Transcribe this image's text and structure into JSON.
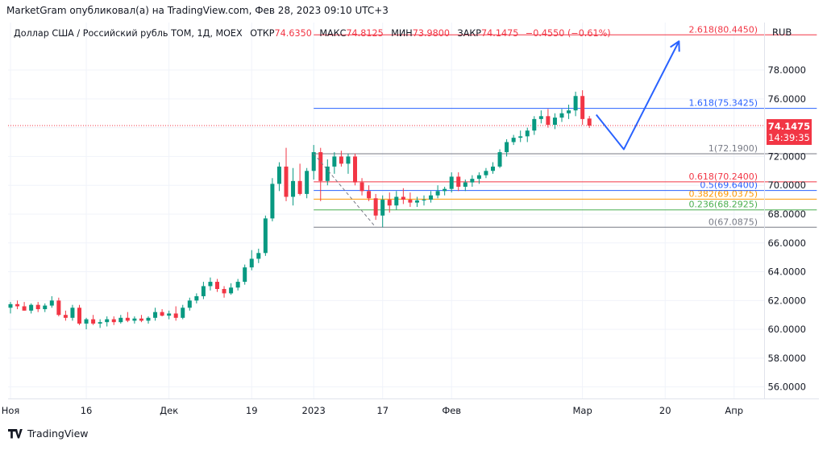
{
  "header": {
    "published": "MarketGram опубликовал(а) на TradingView.com, Фев 28, 2023 09:10 UTC+3"
  },
  "legend": {
    "symbol": "Доллар США / Российский рубль TOM, 1Д, MOEX",
    "open_label": "ОТКР",
    "open_value": "74.6350",
    "high_label": "МАКС",
    "high_value": "74.8125",
    "low_label": "МИН",
    "low_value": "73.9800",
    "close_label": "ЗАКР",
    "close_value": "74.1475",
    "change": "−0.4550 (−0.61%)"
  },
  "footer": {
    "brand": "TradingView"
  },
  "chart_data": {
    "type": "candlestick",
    "currency": "RUB",
    "ylim": [
      55.2,
      81.3
    ],
    "y_ticks": [
      "56.0000",
      "58.0000",
      "60.0000",
      "62.0000",
      "64.0000",
      "66.0000",
      "68.0000",
      "70.0000",
      "72.0000",
      "74.0000",
      "76.0000",
      "78.0000"
    ],
    "x_ticks": [
      {
        "label": "Ноя",
        "bar": 0
      },
      {
        "label": "16",
        "bar": 11
      },
      {
        "label": "Дек",
        "bar": 23
      },
      {
        "label": "19",
        "bar": 35
      },
      {
        "label": "2023",
        "bar": 44
      },
      {
        "label": "17",
        "bar": 54
      },
      {
        "label": "Фев",
        "bar": 64
      },
      {
        "label": "Мар",
        "bar": 83
      },
      {
        "label": "20",
        "bar": 95
      },
      {
        "label": "Апр",
        "bar": 105
      }
    ],
    "price_label": {
      "value": "74.1475",
      "countdown": "14:39:35"
    },
    "candles": [
      {
        "o": 61.5,
        "h": 61.9,
        "l": 61.1,
        "c": 61.75
      },
      {
        "o": 61.75,
        "h": 62.0,
        "l": 61.4,
        "c": 61.6
      },
      {
        "o": 61.6,
        "h": 61.9,
        "l": 61.3,
        "c": 61.3
      },
      {
        "o": 61.3,
        "h": 61.8,
        "l": 61.1,
        "c": 61.7
      },
      {
        "o": 61.7,
        "h": 61.9,
        "l": 61.2,
        "c": 61.4
      },
      {
        "o": 61.4,
        "h": 61.8,
        "l": 61.2,
        "c": 61.65
      },
      {
        "o": 61.65,
        "h": 62.3,
        "l": 61.5,
        "c": 62.0
      },
      {
        "o": 62.0,
        "h": 62.2,
        "l": 60.9,
        "c": 61.0
      },
      {
        "o": 61.0,
        "h": 61.3,
        "l": 60.6,
        "c": 60.8
      },
      {
        "o": 60.8,
        "h": 61.7,
        "l": 60.6,
        "c": 61.5
      },
      {
        "o": 61.5,
        "h": 61.7,
        "l": 60.3,
        "c": 60.4
      },
      {
        "o": 60.4,
        "h": 60.8,
        "l": 60.0,
        "c": 60.7
      },
      {
        "o": 60.7,
        "h": 61.0,
        "l": 60.3,
        "c": 60.4
      },
      {
        "o": 60.4,
        "h": 60.7,
        "l": 60.1,
        "c": 60.5
      },
      {
        "o": 60.5,
        "h": 60.9,
        "l": 60.2,
        "c": 60.7
      },
      {
        "o": 60.7,
        "h": 60.9,
        "l": 60.3,
        "c": 60.5
      },
      {
        "o": 60.5,
        "h": 61.0,
        "l": 60.4,
        "c": 60.8
      },
      {
        "o": 60.8,
        "h": 61.2,
        "l": 60.5,
        "c": 60.6
      },
      {
        "o": 60.6,
        "h": 60.9,
        "l": 60.4,
        "c": 60.75
      },
      {
        "o": 60.75,
        "h": 61.0,
        "l": 60.5,
        "c": 60.6
      },
      {
        "o": 60.6,
        "h": 60.9,
        "l": 60.4,
        "c": 60.8
      },
      {
        "o": 60.8,
        "h": 61.5,
        "l": 60.6,
        "c": 61.2
      },
      {
        "o": 61.2,
        "h": 61.4,
        "l": 60.9,
        "c": 60.95
      },
      {
        "o": 60.95,
        "h": 61.3,
        "l": 60.7,
        "c": 61.1
      },
      {
        "o": 61.1,
        "h": 61.6,
        "l": 60.6,
        "c": 60.8
      },
      {
        "o": 60.8,
        "h": 61.7,
        "l": 60.7,
        "c": 61.5
      },
      {
        "o": 61.5,
        "h": 62.2,
        "l": 61.3,
        "c": 62.0
      },
      {
        "o": 62.0,
        "h": 62.5,
        "l": 61.8,
        "c": 62.3
      },
      {
        "o": 62.3,
        "h": 63.3,
        "l": 62.1,
        "c": 63.0
      },
      {
        "o": 63.0,
        "h": 63.6,
        "l": 62.7,
        "c": 63.3
      },
      {
        "o": 63.3,
        "h": 63.5,
        "l": 62.6,
        "c": 62.8
      },
      {
        "o": 62.8,
        "h": 63.0,
        "l": 62.2,
        "c": 62.5
      },
      {
        "o": 62.5,
        "h": 63.2,
        "l": 62.4,
        "c": 62.9
      },
      {
        "o": 62.9,
        "h": 63.5,
        "l": 62.7,
        "c": 63.3
      },
      {
        "o": 63.3,
        "h": 64.5,
        "l": 63.1,
        "c": 64.3
      },
      {
        "o": 64.3,
        "h": 65.5,
        "l": 64.1,
        "c": 64.9
      },
      {
        "o": 64.9,
        "h": 65.6,
        "l": 64.6,
        "c": 65.3
      },
      {
        "o": 65.3,
        "h": 67.9,
        "l": 65.1,
        "c": 67.7
      },
      {
        "o": 67.7,
        "h": 70.5,
        "l": 67.5,
        "c": 70.1
      },
      {
        "o": 70.1,
        "h": 71.6,
        "l": 69.6,
        "c": 71.3
      },
      {
        "o": 71.3,
        "h": 72.6,
        "l": 68.9,
        "c": 69.2
      },
      {
        "o": 69.2,
        "h": 71.2,
        "l": 68.6,
        "c": 70.3
      },
      {
        "o": 70.3,
        "h": 71.5,
        "l": 69.3,
        "c": 69.4
      },
      {
        "o": 69.4,
        "h": 71.2,
        "l": 69.1,
        "c": 71.0
      },
      {
        "o": 71.0,
        "h": 72.8,
        "l": 70.4,
        "c": 72.3
      },
      {
        "o": 72.3,
        "h": 72.6,
        "l": 68.9,
        "c": 70.3
      },
      {
        "o": 70.3,
        "h": 71.8,
        "l": 70.0,
        "c": 71.3
      },
      {
        "o": 71.3,
        "h": 72.3,
        "l": 70.8,
        "c": 72.0
      },
      {
        "o": 72.0,
        "h": 72.4,
        "l": 71.3,
        "c": 71.5
      },
      {
        "o": 71.5,
        "h": 72.2,
        "l": 70.8,
        "c": 72.0
      },
      {
        "o": 72.0,
        "h": 72.2,
        "l": 70.0,
        "c": 70.2
      },
      {
        "o": 70.2,
        "h": 70.5,
        "l": 69.3,
        "c": 69.6
      },
      {
        "o": 69.6,
        "h": 70.0,
        "l": 68.9,
        "c": 69.1
      },
      {
        "o": 69.1,
        "h": 69.4,
        "l": 67.6,
        "c": 67.9
      },
      {
        "o": 67.9,
        "h": 69.3,
        "l": 67.09,
        "c": 69.0
      },
      {
        "o": 69.0,
        "h": 69.5,
        "l": 68.1,
        "c": 68.6
      },
      {
        "o": 68.6,
        "h": 69.6,
        "l": 68.3,
        "c": 69.2
      },
      {
        "o": 69.2,
        "h": 69.8,
        "l": 68.7,
        "c": 69.0
      },
      {
        "o": 69.0,
        "h": 69.5,
        "l": 68.5,
        "c": 68.8
      },
      {
        "o": 68.8,
        "h": 69.2,
        "l": 68.5,
        "c": 68.95
      },
      {
        "o": 68.95,
        "h": 69.3,
        "l": 68.6,
        "c": 69.0
      },
      {
        "o": 69.0,
        "h": 69.6,
        "l": 68.8,
        "c": 69.3
      },
      {
        "o": 69.3,
        "h": 70.0,
        "l": 69.1,
        "c": 69.6
      },
      {
        "o": 69.6,
        "h": 69.9,
        "l": 69.3,
        "c": 69.75
      },
      {
        "o": 69.75,
        "h": 70.9,
        "l": 69.5,
        "c": 70.6
      },
      {
        "o": 70.6,
        "h": 70.9,
        "l": 69.6,
        "c": 69.9
      },
      {
        "o": 69.9,
        "h": 70.4,
        "l": 69.6,
        "c": 70.2
      },
      {
        "o": 70.2,
        "h": 70.7,
        "l": 69.9,
        "c": 70.45
      },
      {
        "o": 70.45,
        "h": 70.9,
        "l": 70.1,
        "c": 70.7
      },
      {
        "o": 70.7,
        "h": 71.2,
        "l": 70.5,
        "c": 71.0
      },
      {
        "o": 71.0,
        "h": 71.6,
        "l": 70.8,
        "c": 71.3
      },
      {
        "o": 71.3,
        "h": 72.5,
        "l": 71.2,
        "c": 72.3
      },
      {
        "o": 72.3,
        "h": 73.2,
        "l": 72.0,
        "c": 73.0
      },
      {
        "o": 73.0,
        "h": 73.5,
        "l": 72.8,
        "c": 73.3
      },
      {
        "o": 73.3,
        "h": 73.8,
        "l": 73.0,
        "c": 73.4
      },
      {
        "o": 73.4,
        "h": 74.0,
        "l": 73.0,
        "c": 73.8
      },
      {
        "o": 73.8,
        "h": 74.8,
        "l": 73.5,
        "c": 74.6
      },
      {
        "o": 74.6,
        "h": 75.2,
        "l": 74.3,
        "c": 74.8
      },
      {
        "o": 74.8,
        "h": 75.3,
        "l": 74.0,
        "c": 74.2
      },
      {
        "o": 74.2,
        "h": 75.0,
        "l": 73.9,
        "c": 74.7
      },
      {
        "o": 74.7,
        "h": 75.3,
        "l": 74.4,
        "c": 75.0
      },
      {
        "o": 75.0,
        "h": 75.6,
        "l": 74.6,
        "c": 75.2
      },
      {
        "o": 75.2,
        "h": 76.5,
        "l": 74.8,
        "c": 76.2
      },
      {
        "o": 76.2,
        "h": 76.6,
        "l": 74.2,
        "c": 74.6
      },
      {
        "o": 74.635,
        "h": 74.8125,
        "l": 73.98,
        "c": 74.1475
      }
    ],
    "fib": {
      "start_bar": 44,
      "end_bar": 117,
      "levels": [
        {
          "label": "0(67.0875)",
          "value": 67.0875,
          "color": "#787b86"
        },
        {
          "label": "0.236(68.2925)",
          "value": 68.2925,
          "color": "#4caf50"
        },
        {
          "label": "0.382(69.0375)",
          "value": 69.0375,
          "color": "#ff9800"
        },
        {
          "label": "0.5(69.6400)",
          "value": 69.64,
          "color": "#2962ff"
        },
        {
          "label": "0.618(70.2400)",
          "value": 70.24,
          "color": "#f23645"
        },
        {
          "label": "1(72.1900)",
          "value": 72.19,
          "color": "#787b86"
        },
        {
          "label": "1.618(75.3425)",
          "value": 75.3425,
          "color": "#2962ff"
        },
        {
          "label": "2.618(80.4450)",
          "value": 80.445,
          "color": "#f23645"
        }
      ]
    },
    "trend_dashed": [
      {
        "bar": 44,
        "value": 72.2
      },
      {
        "bar": 53,
        "value": 67.0875
      }
    ],
    "forecast": [
      {
        "bar": 85,
        "value": 74.9
      },
      {
        "bar": 89,
        "value": 72.5
      },
      {
        "bar": 97,
        "value": 80.0
      }
    ],
    "colors": {
      "up": "#089981",
      "down": "#f23645",
      "forecast": "#2962ff",
      "grid": "#f0f3fa",
      "axis_text": "#131722"
    }
  }
}
